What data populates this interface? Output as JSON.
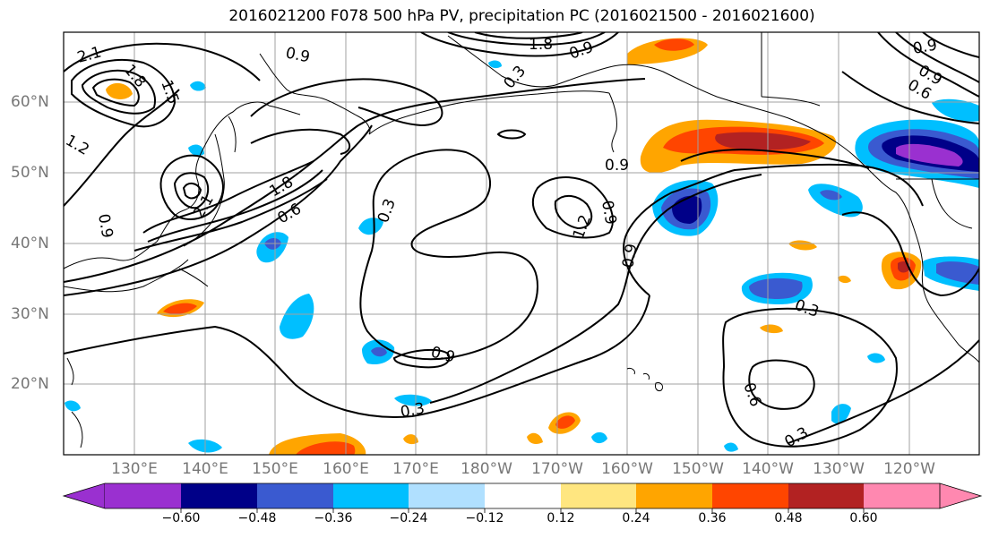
{
  "title": "2016021200 F078 500 hPa PV, precipitation PC (2016021500 - 2016021600)",
  "lat_labels": [
    "60°N",
    "50°N",
    "40°N",
    "30°N",
    "20°N"
  ],
  "lon_labels": [
    "130°E",
    "140°E",
    "150°E",
    "160°E",
    "170°E",
    "180°W",
    "170°W",
    "160°W",
    "150°W",
    "140°W",
    "130°W",
    "120°W"
  ],
  "contour_labels": [
    "2.1",
    "1.8",
    "1.5",
    "0.9",
    "1.8",
    "0.9",
    "0.3",
    "0.9",
    "0.9",
    "0.6",
    "1.2",
    "0.9",
    "2.1",
    "1.8",
    "0.6",
    "0.3",
    "0.9",
    "1.2",
    "0.9",
    "0.9",
    "0.3",
    "0.9",
    "0.3",
    "0.6",
    "0.3"
  ],
  "colorbar": {
    "ticks": [
      "−0.60",
      "−0.48",
      "−0.36",
      "−0.24",
      "−0.12",
      "0.12",
      "0.24",
      "0.36",
      "0.48",
      "0.60"
    ],
    "colors": [
      "#9a30d0",
      "#000088",
      "#3a5ad0",
      "#00bfff",
      "#b0e0ff",
      "#ffffff",
      "#ffe680",
      "#ffa500",
      "#ff4500",
      "#b22222",
      "#ff88b0"
    ]
  },
  "colors": {
    "frame": "#000000",
    "grid": "#a0a0a0",
    "tick_label": "#777777"
  }
}
